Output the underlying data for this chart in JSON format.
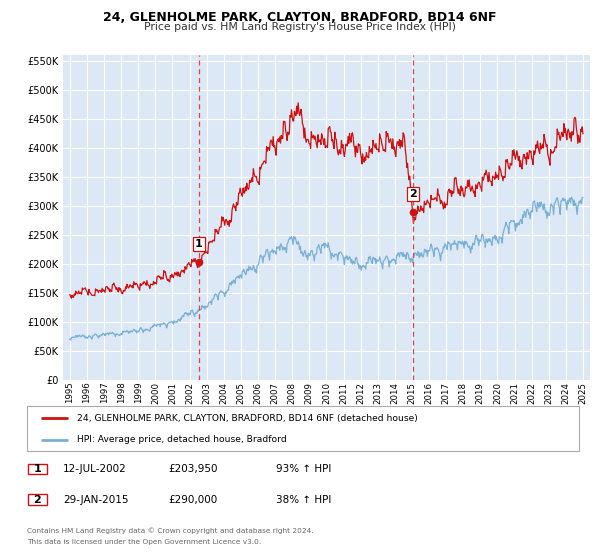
{
  "title": "24, GLENHOLME PARK, CLAYTON, BRADFORD, BD14 6NF",
  "subtitle": "Price paid vs. HM Land Registry's House Price Index (HPI)",
  "bg_color": "#dce8f5",
  "grid_color": "#ffffff",
  "sale1_date": 2002.53,
  "sale1_price": 203950,
  "sale2_date": 2015.08,
  "sale2_price": 290000,
  "hpi_color": "#7ab0d4",
  "price_color": "#cc1111",
  "dashed_color": "#dd4444",
  "ylim_max": 560000,
  "xlim_start": 1994.6,
  "xlim_end": 2025.4,
  "legend_label_price": "24, GLENHOLME PARK, CLAYTON, BRADFORD, BD14 6NF (detached house)",
  "legend_label_hpi": "HPI: Average price, detached house, Bradford",
  "annotation1_date": "12-JUL-2002",
  "annotation1_price": "£203,950",
  "annotation1_pct": "93% ↑ HPI",
  "annotation2_date": "29-JAN-2015",
  "annotation2_price": "£290,000",
  "annotation2_pct": "38% ↑ HPI",
  "footer1": "Contains HM Land Registry data © Crown copyright and database right 2024.",
  "footer2": "This data is licensed under the Open Government Licence v3.0.",
  "yticks": [
    0,
    50000,
    100000,
    150000,
    200000,
    250000,
    300000,
    350000,
    400000,
    450000,
    500000,
    550000
  ],
  "xticks": [
    1995,
    1996,
    1997,
    1998,
    1999,
    2000,
    2001,
    2002,
    2003,
    2004,
    2005,
    2006,
    2007,
    2008,
    2009,
    2010,
    2011,
    2012,
    2013,
    2014,
    2015,
    2016,
    2017,
    2018,
    2019,
    2020,
    2021,
    2022,
    2023,
    2024,
    2025
  ]
}
